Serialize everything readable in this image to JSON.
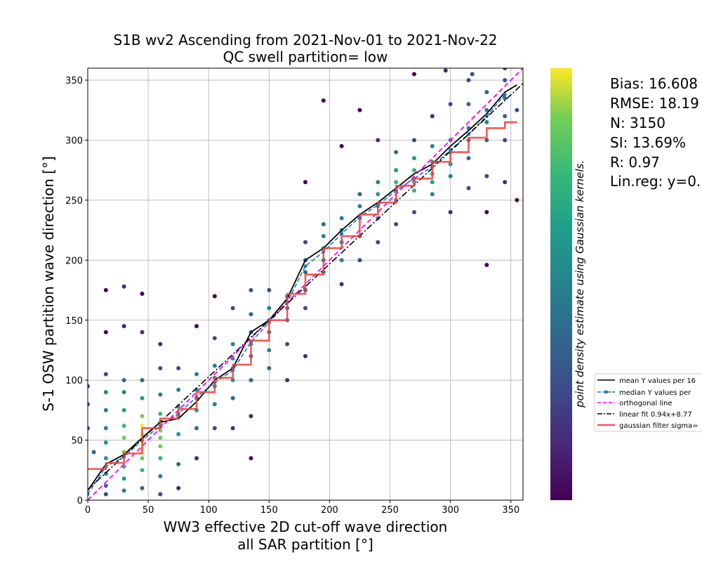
{
  "chart_data": {
    "type": "scatter",
    "title_line1": "S1B wv2 Ascending from 2021-Nov-01 to 2021-Nov-22",
    "title_line2": "QC swell partition= low",
    "xlabel_line1": "WW3 effective 2D cut-off wave direction",
    "xlabel_line2": "all SAR partition [°]",
    "ylabel": "S-1 OSW partition wave direction [°]",
    "colorbar_label": "point density estimate using Gaussian kernels.",
    "colormap": "viridis",
    "xlim": [
      0,
      360
    ],
    "ylim": [
      0,
      360
    ],
    "xticks": [
      "0",
      "50",
      "100",
      "150",
      "200",
      "250",
      "300",
      "350"
    ],
    "yticks": [
      "0",
      "50",
      "100",
      "150",
      "200",
      "250",
      "300",
      "350"
    ],
    "grid": true,
    "legend_placement": "right, outside",
    "stats": {
      "bias": "Bias: 16.608",
      "rmse": "RMSE: 18.19",
      "n": "N: 3150",
      "si": "SI: 13.69%",
      "r": "R: 0.97",
      "linreg": "Lin.reg: y=0."
    },
    "legend": [
      {
        "label": "mean Y values per 16",
        "color": "#000000",
        "style": "solid"
      },
      {
        "label": "median Y values per",
        "color": "#1f77b4",
        "style": "dashed-dot-marker"
      },
      {
        "label": "orthogonal line",
        "color": "#ff00ff",
        "style": "dashed"
      },
      {
        "label": "linear fit 0.94x+8.77",
        "color": "#000000",
        "style": "dashdot"
      },
      {
        "label": "gaussian filter sigma=",
        "color": "#f03c3c",
        "style": "thick"
      }
    ],
    "series": [
      {
        "name": "mean Y values per 16",
        "x": [
          0,
          15,
          30,
          45,
          60,
          75,
          90,
          105,
          120,
          135,
          150,
          165,
          180,
          195,
          210,
          225,
          240,
          255,
          270,
          285,
          300,
          315,
          330,
          345,
          355
        ],
        "y": [
          8,
          30,
          38,
          52,
          65,
          68,
          82,
          100,
          110,
          140,
          150,
          168,
          200,
          210,
          225,
          238,
          248,
          260,
          272,
          280,
          295,
          308,
          322,
          340,
          346
        ]
      },
      {
        "name": "median Y values per",
        "x": [
          0,
          15,
          30,
          45,
          60,
          75,
          90,
          105,
          120,
          135,
          150,
          165,
          180,
          195,
          210,
          225,
          240,
          255,
          270,
          285,
          300,
          315,
          330,
          345
        ],
        "y": [
          5,
          28,
          36,
          50,
          62,
          72,
          86,
          98,
          108,
          132,
          148,
          165,
          195,
          207,
          222,
          236,
          246,
          258,
          268,
          278,
          292,
          305,
          320,
          338
        ]
      },
      {
        "name": "orthogonal line",
        "x": [
          0,
          360
        ],
        "y": [
          0,
          360
        ]
      },
      {
        "name": "linear fit 0.94x+8.77",
        "x": [
          0,
          360
        ],
        "y": [
          8.77,
          347.17
        ]
      },
      {
        "name": "gaussian filter sigma=",
        "x": [
          0,
          15,
          15,
          30,
          30,
          45,
          45,
          60,
          60,
          75,
          75,
          90,
          90,
          105,
          105,
          120,
          120,
          135,
          135,
          150,
          150,
          165,
          165,
          180,
          180,
          195,
          195,
          210,
          210,
          225,
          225,
          240,
          240,
          255,
          255,
          270,
          270,
          285,
          285,
          300,
          300,
          315,
          315,
          330,
          330,
          345,
          345,
          355
        ],
        "y": [
          26,
          26,
          31,
          31,
          39,
          39,
          60,
          60,
          68,
          68,
          76,
          76,
          90,
          90,
          102,
          102,
          113,
          113,
          133,
          133,
          150,
          150,
          172,
          172,
          188,
          188,
          210,
          210,
          220,
          220,
          238,
          238,
          248,
          248,
          262,
          262,
          268,
          268,
          282,
          282,
          290,
          290,
          302,
          302,
          310,
          310,
          315,
          315
        ]
      }
    ],
    "points": [
      [
        15,
        5
      ],
      [
        15,
        12
      ],
      [
        15,
        22
      ],
      [
        15,
        35
      ],
      [
        15,
        48
      ],
      [
        15,
        60
      ],
      [
        15,
        75
      ],
      [
        15,
        90
      ],
      [
        15,
        105
      ],
      [
        15,
        140
      ],
      [
        15,
        175
      ],
      [
        30,
        8
      ],
      [
        30,
        18
      ],
      [
        30,
        28
      ],
      [
        30,
        40
      ],
      [
        30,
        52
      ],
      [
        30,
        62
      ],
      [
        30,
        75
      ],
      [
        30,
        90
      ],
      [
        30,
        100
      ],
      [
        30,
        145
      ],
      [
        30,
        178
      ],
      [
        45,
        10
      ],
      [
        45,
        25
      ],
      [
        45,
        35
      ],
      [
        45,
        42
      ],
      [
        45,
        48
      ],
      [
        45,
        55
      ],
      [
        45,
        62
      ],
      [
        45,
        70
      ],
      [
        45,
        85
      ],
      [
        45,
        100
      ],
      [
        45,
        140
      ],
      [
        45,
        172
      ],
      [
        60,
        5
      ],
      [
        60,
        20
      ],
      [
        60,
        35
      ],
      [
        60,
        45
      ],
      [
        60,
        52
      ],
      [
        60,
        58
      ],
      [
        60,
        65
      ],
      [
        60,
        72
      ],
      [
        60,
        88
      ],
      [
        60,
        110
      ],
      [
        60,
        130
      ],
      [
        75,
        10
      ],
      [
        75,
        30
      ],
      [
        75,
        55
      ],
      [
        75,
        70
      ],
      [
        75,
        78
      ],
      [
        75,
        92
      ],
      [
        75,
        110
      ],
      [
        90,
        35
      ],
      [
        90,
        60
      ],
      [
        90,
        75
      ],
      [
        90,
        85
      ],
      [
        90,
        92
      ],
      [
        90,
        105
      ],
      [
        90,
        145
      ],
      [
        105,
        60
      ],
      [
        105,
        80
      ],
      [
        105,
        95
      ],
      [
        105,
        102
      ],
      [
        105,
        112
      ],
      [
        105,
        135
      ],
      [
        105,
        170
      ],
      [
        120,
        60
      ],
      [
        120,
        85
      ],
      [
        120,
        100
      ],
      [
        120,
        110
      ],
      [
        120,
        118
      ],
      [
        120,
        130
      ],
      [
        120,
        160
      ],
      [
        135,
        35
      ],
      [
        135,
        70
      ],
      [
        135,
        100
      ],
      [
        135,
        120
      ],
      [
        135,
        130
      ],
      [
        135,
        140
      ],
      [
        135,
        155
      ],
      [
        135,
        175
      ],
      [
        150,
        110
      ],
      [
        150,
        125
      ],
      [
        150,
        140
      ],
      [
        150,
        150
      ],
      [
        150,
        160
      ],
      [
        150,
        175
      ],
      [
        165,
        100
      ],
      [
        165,
        130
      ],
      [
        165,
        150
      ],
      [
        165,
        160
      ],
      [
        165,
        170
      ],
      [
        180,
        120
      ],
      [
        180,
        160
      ],
      [
        180,
        175
      ],
      [
        180,
        190
      ],
      [
        180,
        200
      ],
      [
        180,
        215
      ],
      [
        180,
        265
      ],
      [
        195,
        190
      ],
      [
        195,
        200
      ],
      [
        195,
        210
      ],
      [
        195,
        220
      ],
      [
        195,
        230
      ],
      [
        195,
        333
      ],
      [
        210,
        180
      ],
      [
        210,
        200
      ],
      [
        210,
        215
      ],
      [
        210,
        225
      ],
      [
        210,
        235
      ],
      [
        210,
        295
      ],
      [
        225,
        200
      ],
      [
        225,
        220
      ],
      [
        225,
        235
      ],
      [
        225,
        245
      ],
      [
        225,
        255
      ],
      [
        225,
        325
      ],
      [
        240,
        215
      ],
      [
        240,
        235
      ],
      [
        240,
        245
      ],
      [
        240,
        255
      ],
      [
        240,
        265
      ],
      [
        240,
        300
      ],
      [
        255,
        230
      ],
      [
        255,
        250
      ],
      [
        255,
        258
      ],
      [
        255,
        265
      ],
      [
        255,
        275
      ],
      [
        255,
        290
      ],
      [
        270,
        240
      ],
      [
        270,
        258
      ],
      [
        270,
        265
      ],
      [
        270,
        275
      ],
      [
        270,
        285
      ],
      [
        270,
        300
      ],
      [
        285,
        255
      ],
      [
        285,
        265
      ],
      [
        285,
        272
      ],
      [
        285,
        282
      ],
      [
        285,
        295
      ],
      [
        285,
        320
      ],
      [
        300,
        240
      ],
      [
        300,
        270
      ],
      [
        300,
        280
      ],
      [
        300,
        290
      ],
      [
        300,
        300
      ],
      [
        300,
        330
      ],
      [
        315,
        260
      ],
      [
        315,
        285
      ],
      [
        315,
        300
      ],
      [
        315,
        310
      ],
      [
        315,
        330
      ],
      [
        315,
        350
      ],
      [
        330,
        270
      ],
      [
        330,
        300
      ],
      [
        330,
        315
      ],
      [
        330,
        325
      ],
      [
        330,
        340
      ],
      [
        330,
        196
      ],
      [
        330,
        240
      ],
      [
        345,
        265
      ],
      [
        345,
        300
      ],
      [
        345,
        320
      ],
      [
        345,
        335
      ],
      [
        345,
        350
      ],
      [
        345,
        360
      ],
      [
        0,
        60
      ],
      [
        0,
        80
      ],
      [
        0,
        95
      ],
      [
        5,
        40
      ],
      [
        355,
        250
      ],
      [
        355,
        325
      ],
      [
        318,
        355
      ],
      [
        296,
        358
      ],
      [
        270,
        355
      ]
    ]
  }
}
